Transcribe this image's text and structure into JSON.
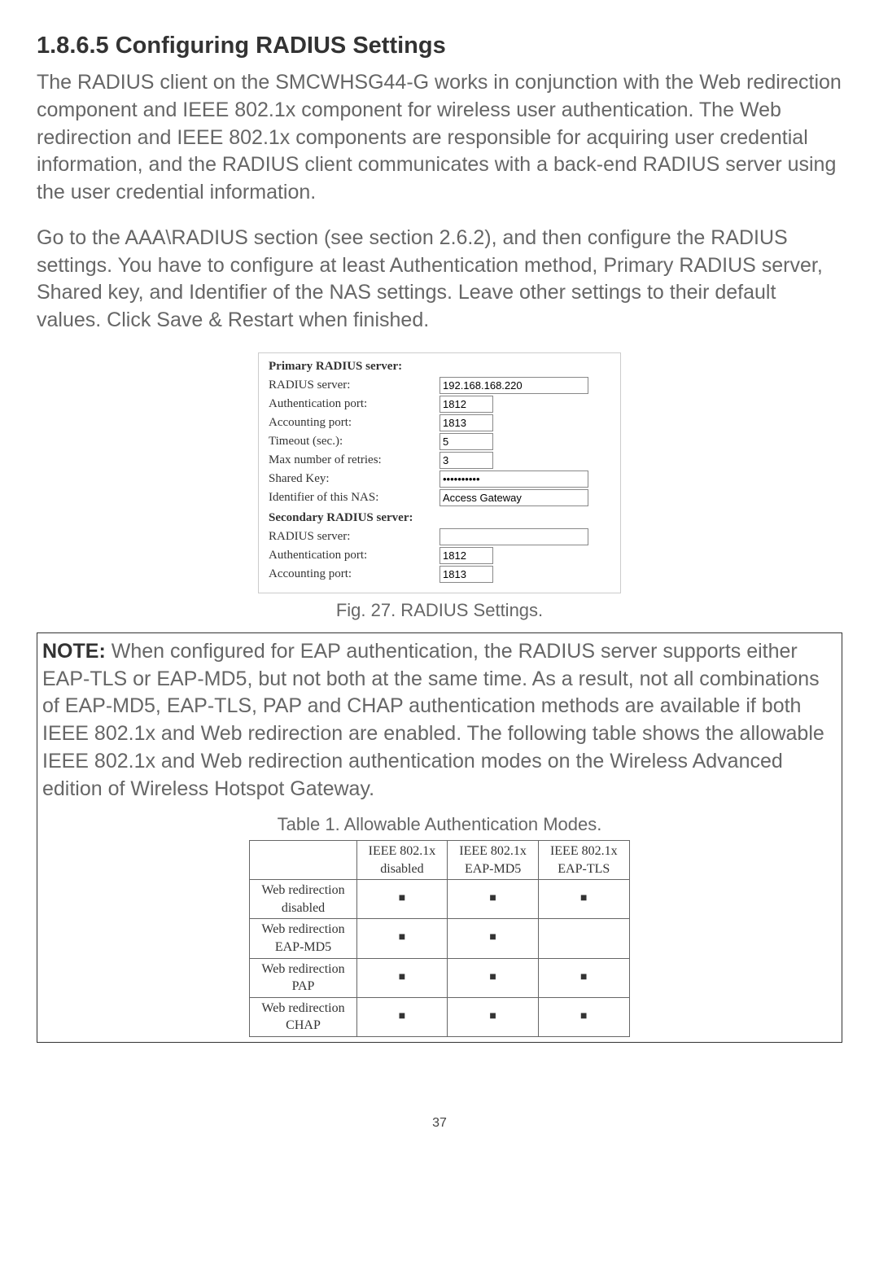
{
  "heading": "1.8.6.5 Configuring RADIUS Settings",
  "para1": "The RADIUS client on the SMCWHSG44-G works in conjunction with the Web redirection component and IEEE 802.1x component for wireless user authentication. The Web redirection and IEEE 802.1x components are responsible for acquiring user credential information, and the RADIUS client communicates with a back-end RADIUS server using the user credential information.",
  "para2": "Go to the AAA\\RADIUS section (see section 2.6.2), and then configure the RADIUS settings. You have to configure at least Authentication method, Primary RADIUS server, Shared key, and Identifier of the NAS settings. Leave other settings to their default values. Click Save & Restart when finished.",
  "figure": {
    "primary_header": "Primary RADIUS server:",
    "secondary_header": "Secondary RADIUS server:",
    "rows": {
      "radius_server_label": "RADIUS server:",
      "auth_port_label": "Authentication port:",
      "acct_port_label": "Accounting port:",
      "timeout_label": "Timeout (sec.):",
      "retries_label": "Max number of retries:",
      "shared_key_label": "Shared Key:",
      "nas_id_label": "Identifier of this NAS:"
    },
    "values": {
      "p_server": "192.168.168.220",
      "p_auth": "1812",
      "p_acct": "1813",
      "p_timeout": "5",
      "p_retries": "3",
      "p_key": "••••••••••",
      "p_nas": "Access Gateway",
      "s_server": "",
      "s_auth": "1812",
      "s_acct": "1813"
    }
  },
  "fig_caption": "Fig. 27. RADIUS Settings.",
  "note_label": "NOTE:",
  "note_text": " When configured for EAP authentication, the RADIUS server supports either EAP-TLS or EAP-MD5, but not both at the same time. As a result, not all combinations of EAP-MD5, EAP-TLS, PAP and CHAP authentication methods are available if both IEEE 802.1x and Web redirection are enabled. The following table shows the allowable IEEE 802.1x and Web redirection authentication modes on the Wireless Advanced edition of Wireless Hotspot Gateway.",
  "table_caption": "Table 1. Allowable Authentication Modes.",
  "table": {
    "col_headers": [
      "",
      "IEEE 802.1x\ndisabled",
      "IEEE 802.1x\nEAP-MD5",
      "IEEE 802.1x\nEAP-TLS"
    ],
    "row_headers": [
      "Web redirection\ndisabled",
      "Web redirection\nEAP-MD5",
      "Web redirection\nPAP",
      "Web redirection\nCHAP"
    ],
    "cells": [
      [
        true,
        true,
        true
      ],
      [
        true,
        true,
        false
      ],
      [
        true,
        true,
        true
      ],
      [
        true,
        true,
        true
      ]
    ],
    "mark": "■"
  },
  "page_number": "37"
}
